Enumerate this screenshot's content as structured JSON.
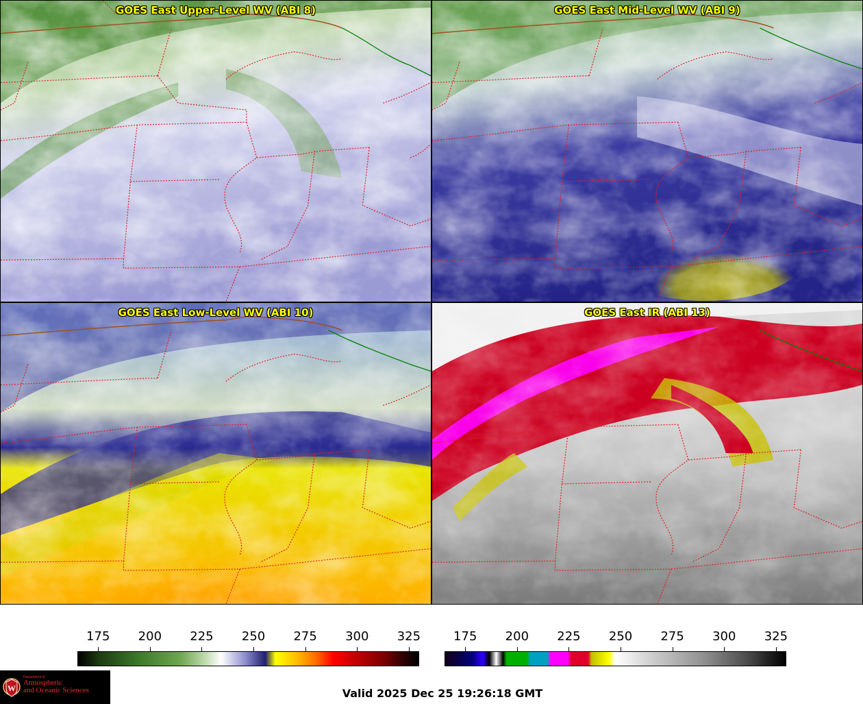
{
  "panels": [
    {
      "title": "GOES East Upper-Level WV (ABI 8)"
    },
    {
      "title": "GOES East Mid-Level WV (ABI 9)"
    },
    {
      "title": "GOES East Low-Level WV (ABI 10)"
    },
    {
      "title": "GOES East IR (ABI 13)"
    }
  ],
  "colorbars": {
    "wv": {
      "ticks": [
        "175",
        "200",
        "225",
        "250",
        "275",
        "300",
        "325"
      ]
    },
    "ir": {
      "ticks": [
        "175",
        "200",
        "225",
        "250",
        "275",
        "300",
        "325"
      ]
    }
  },
  "logo": {
    "line1": "Department of",
    "line2": "Atmospheric",
    "line3": "and Oceanic Sciences",
    "shield_letter": "W"
  },
  "valid_time": "Valid 2025 Dec 25 19:26:18 GMT",
  "colors": {
    "title_text": "#ffff00",
    "state_borders": "#e02020",
    "country_border": "#a0521d",
    "coastline": "#008000"
  }
}
